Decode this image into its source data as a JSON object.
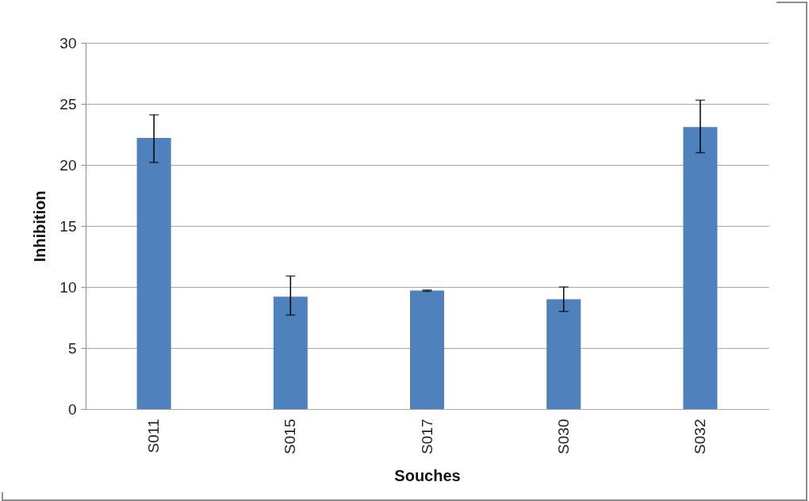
{
  "chart_data": {
    "type": "bar",
    "xlabel": "Souches",
    "ylabel": "Inhibition",
    "categories": [
      "S011",
      "S015",
      "S017",
      "S030",
      "S032"
    ],
    "values": [
      22.2,
      9.2,
      9.7,
      9.0,
      23.1
    ],
    "errors": [
      [
        20.2,
        24.1
      ],
      [
        7.7,
        10.9
      ],
      [
        9.65,
        9.75
      ],
      [
        8.0,
        10.0
      ],
      [
        21.0,
        25.3
      ]
    ],
    "color": "#4f81bd",
    "ylim": [
      0,
      30
    ],
    "yticks": [
      0,
      5,
      10,
      15,
      20,
      25,
      30
    ],
    "grid": "y"
  }
}
